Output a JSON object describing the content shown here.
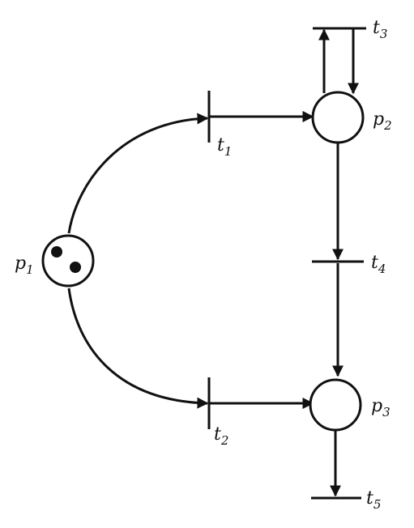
{
  "diagram": {
    "colors": {
      "ink": "#111111",
      "paper": "#ffffff"
    },
    "places": [
      {
        "id": "p1",
        "label": "p",
        "subscript": "1",
        "tokens": 2
      },
      {
        "id": "p2",
        "label": "p",
        "subscript": "2",
        "tokens": 0
      },
      {
        "id": "p3",
        "label": "p",
        "subscript": "3",
        "tokens": 0
      }
    ],
    "transitions": [
      {
        "id": "t1",
        "label": "t",
        "subscript": "1"
      },
      {
        "id": "t2",
        "label": "t",
        "subscript": "2"
      },
      {
        "id": "t3",
        "label": "t",
        "subscript": "3"
      },
      {
        "id": "t4",
        "label": "t",
        "subscript": "4"
      },
      {
        "id": "t5",
        "label": "t",
        "subscript": "5"
      }
    ],
    "arcs": [
      {
        "from": "p1",
        "to": "t1"
      },
      {
        "from": "t1",
        "to": "p2"
      },
      {
        "from": "p1",
        "to": "t2"
      },
      {
        "from": "t2",
        "to": "p3"
      },
      {
        "from": "p2",
        "to": "t3"
      },
      {
        "from": "t3",
        "to": "p2"
      },
      {
        "from": "p2",
        "to": "t4"
      },
      {
        "from": "t4",
        "to": "p3"
      },
      {
        "from": "p3",
        "to": "t5"
      }
    ]
  }
}
